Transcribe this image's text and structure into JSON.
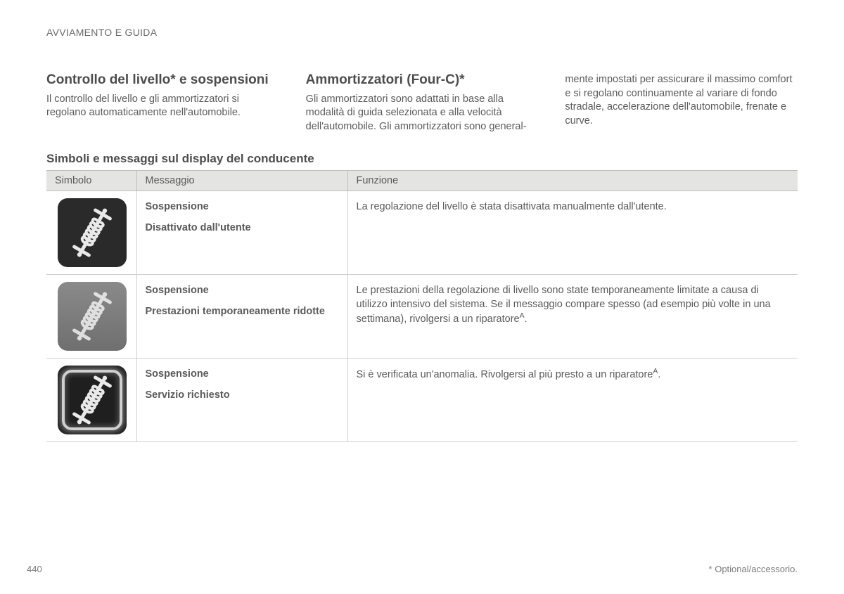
{
  "header": {
    "section": "AVVIAMENTO E GUIDA"
  },
  "intro": {
    "col1": {
      "title": "Controllo del livello* e sospensioni",
      "body": "Il controllo del livello e gli ammortizzatori si regolano automaticamente nell'automobile."
    },
    "col2": {
      "title": "Ammortizzatori (Four-C)*",
      "body": "Gli ammortizzatori sono adattati in base alla modalità di guida selezionata e alla velocità dell'automobile. Gli ammortizzatori sono general-"
    },
    "col3": {
      "body": "mente impostati per assicurare il massimo comfort e si regolano continuamente al variare di fondo stradale, accelerazione dell'automobile, frenate e curve."
    }
  },
  "table": {
    "caption": "Simboli e messaggi sul display del conducente",
    "headers": {
      "symbol": "Simbolo",
      "message": "Messaggio",
      "function": "Funzione"
    },
    "rows": [
      {
        "msg1": "Sospensione",
        "msg2": "Disattivato dall'utente",
        "func": "La regolazione del livello è stata disattivata manualmente dall'utente.",
        "sup": "",
        "tile_variant": "solid",
        "icon_opacity": "1"
      },
      {
        "msg1": "Sospensione",
        "msg2": "Prestazioni temporaneamente ridotte",
        "func": "Le prestazioni della regolazione di livello sono state temporaneamente limitate a causa di utilizzo intensivo del sistema. Se il messaggio compare spesso (ad esempio più volte in una settimana), rivolgersi a un riparatore",
        "sup": "A",
        "tile_variant": "washed",
        "icon_opacity": "0.85"
      },
      {
        "msg1": "Sospensione",
        "msg2": "Servizio richiesto",
        "func": "Si è verificata un'anomalia. Rivolgersi al più presto a un riparatore",
        "sup": "A",
        "tile_variant": "ring",
        "icon_opacity": "1"
      }
    ]
  },
  "footer": {
    "page": "440",
    "note": "* Optional/accessorio."
  },
  "style": {
    "icon_stroke": "#e9e9e9",
    "icon_stroke_washed": "#f1f1f1"
  }
}
